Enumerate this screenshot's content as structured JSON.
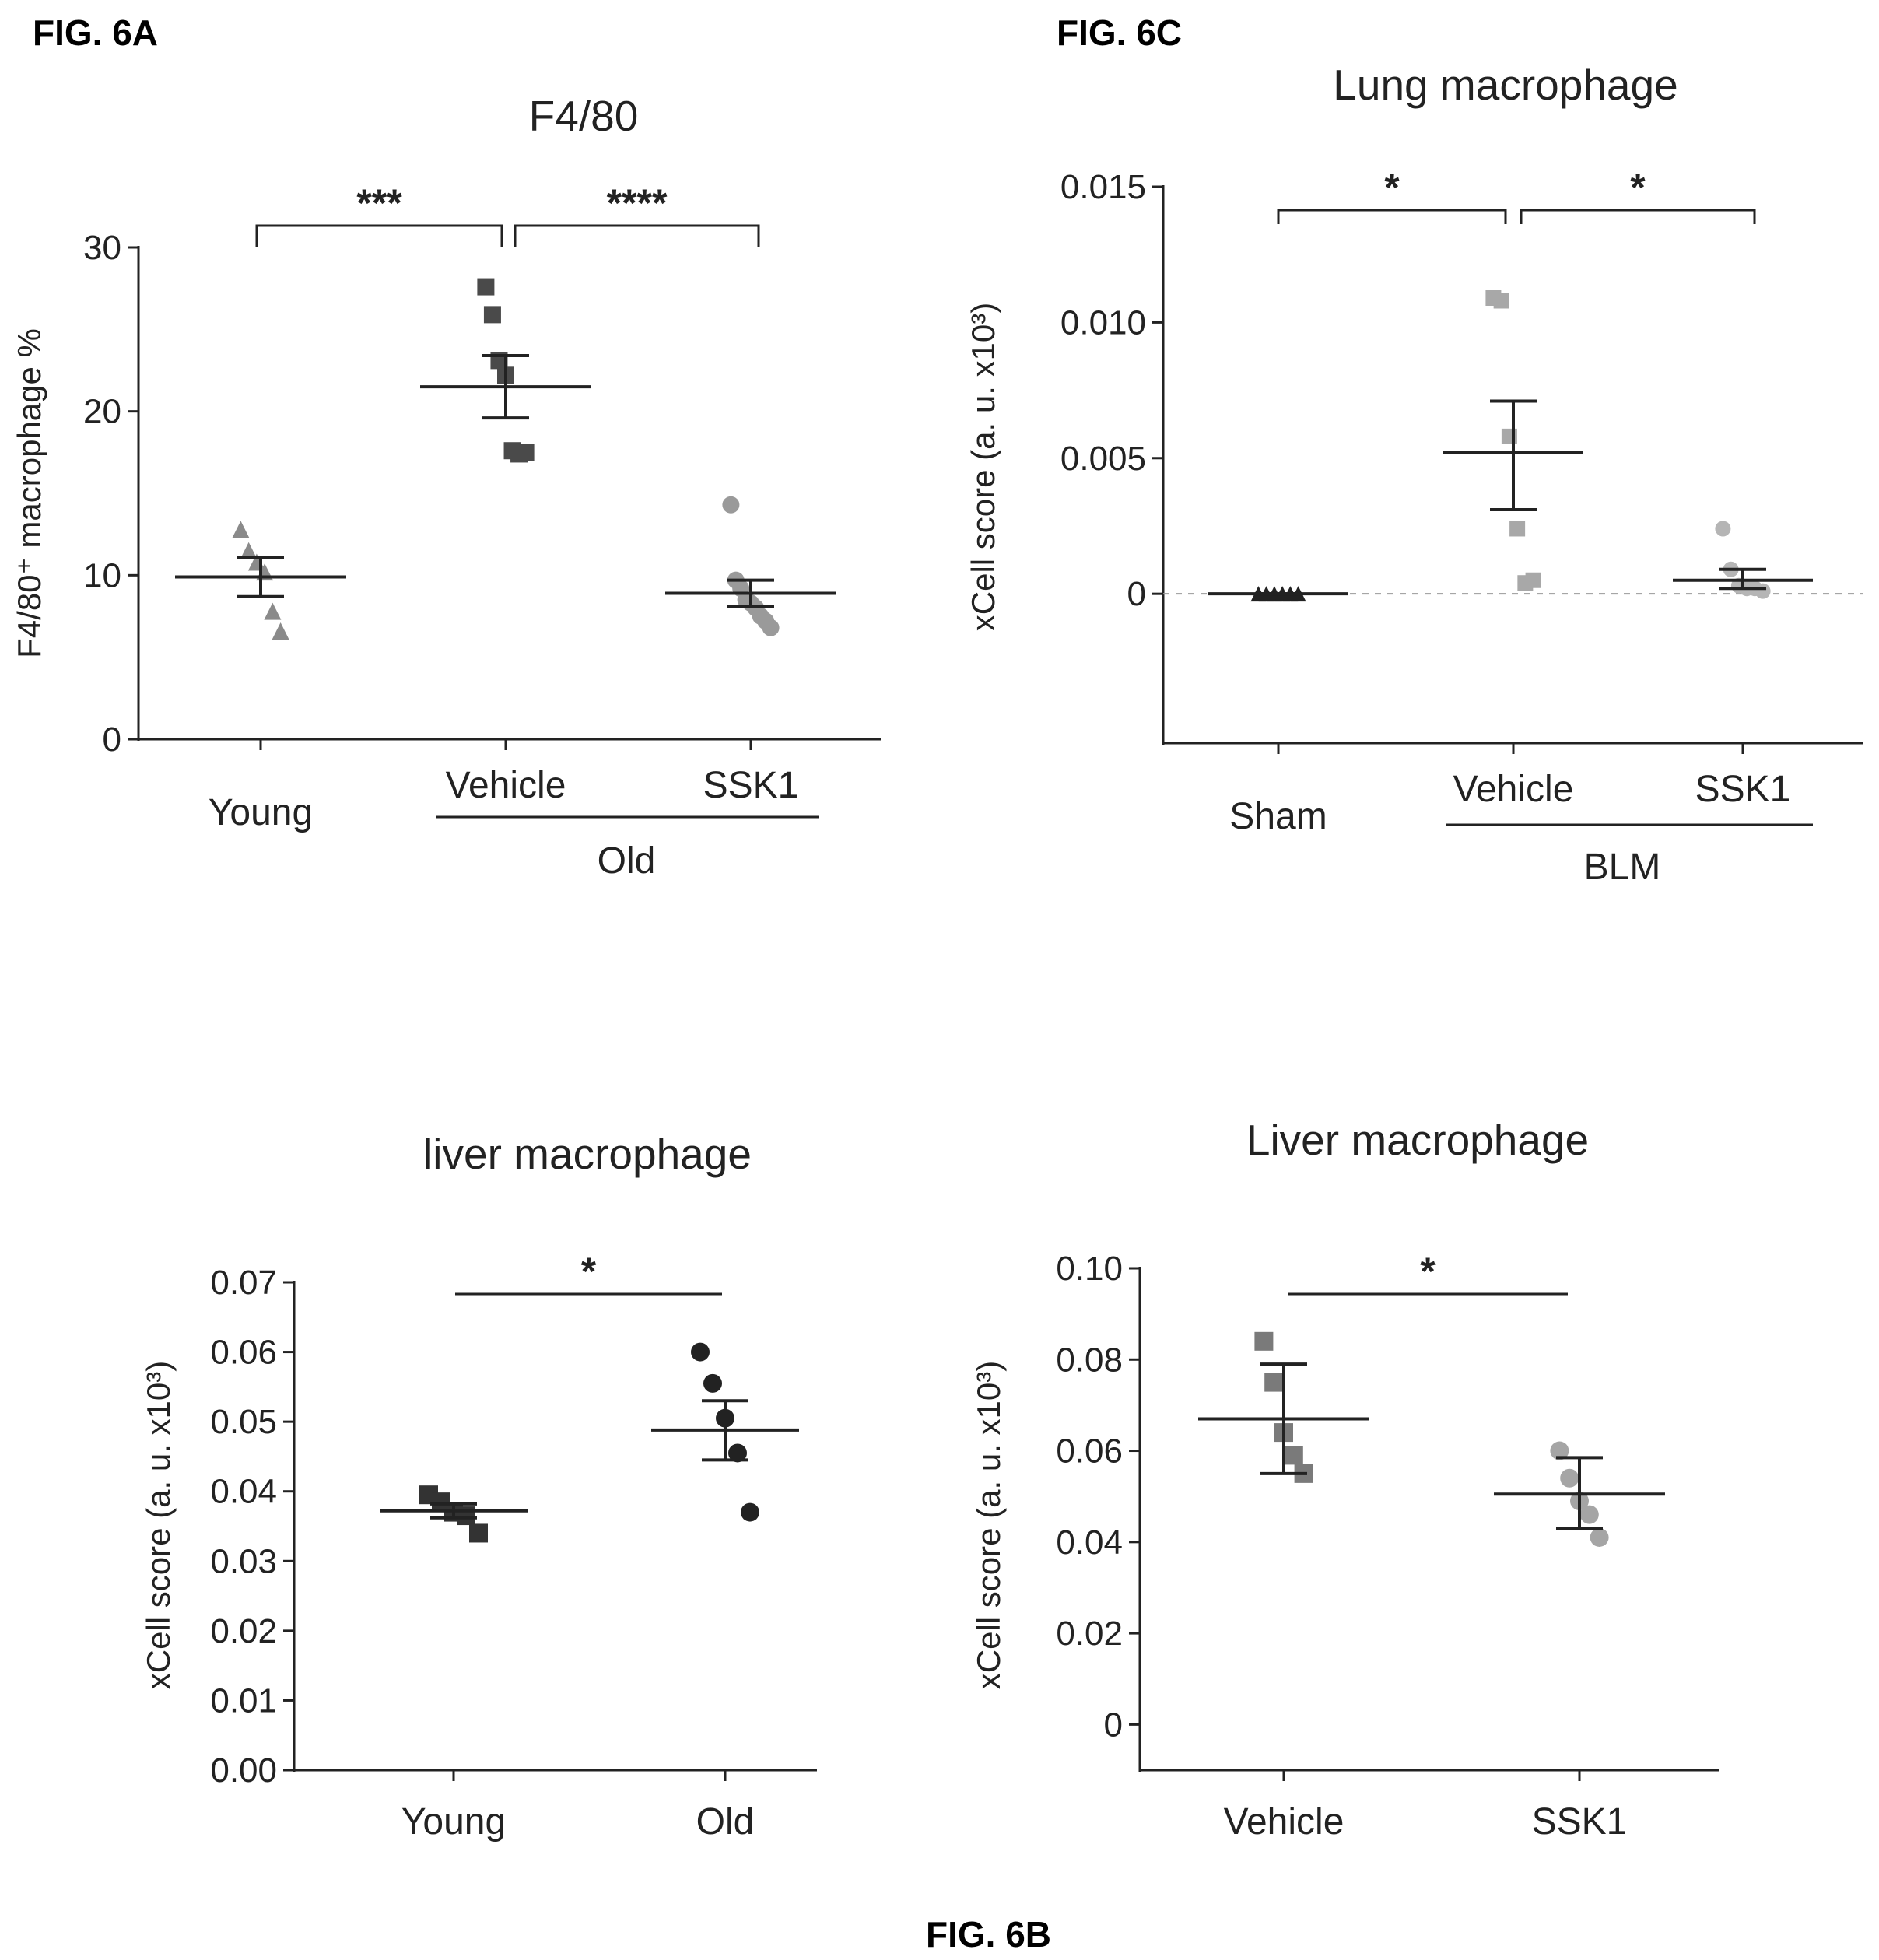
{
  "page": {
    "labels": {
      "a": "FIG. 6A",
      "c": "FIG. 6C",
      "b": "FIG. 6B"
    }
  },
  "chart_data": [
    {
      "id": "6A",
      "type": "scatter",
      "title": "F4/80",
      "ylabel": "F4/80⁺ macrophage %",
      "ylim": [
        0,
        30
      ],
      "yticks": [
        0,
        10,
        20,
        30
      ],
      "ytick_labels": [
        "0",
        "10",
        "20",
        "30"
      ],
      "categories": [
        "Young",
        "Vehicle",
        "SSK1"
      ],
      "group_label": "Old",
      "grid": false,
      "series": [
        {
          "category": "Young",
          "marker": "triangle",
          "color": "#8a8a8a",
          "values": [
            12.8,
            11.5,
            10.8,
            10.2,
            7.8,
            6.6
          ],
          "mean": 9.9,
          "sem_low": 8.7,
          "sem_high": 11.1
        },
        {
          "category": "Vehicle",
          "marker": "square",
          "color": "#4a4a4a",
          "values": [
            27.6,
            25.9,
            23.1,
            22.2,
            17.6,
            17.4,
            17.5
          ],
          "mean": 21.5,
          "sem_low": 19.6,
          "sem_high": 23.4
        },
        {
          "category": "SSK1",
          "marker": "circle",
          "color": "#9a9a9a",
          "values": [
            14.3,
            9.7,
            9.2,
            8.5,
            8.3,
            8.0,
            7.5,
            7.2,
            6.8
          ],
          "mean": 8.9,
          "sem_low": 8.1,
          "sem_high": 9.7
        }
      ],
      "significance": [
        {
          "from": "Young",
          "to": "Vehicle",
          "label": "***"
        },
        {
          "from": "Vehicle",
          "to": "SSK1",
          "label": "****"
        }
      ]
    },
    {
      "id": "6C",
      "type": "scatter",
      "title": "Lung macrophage",
      "ylabel": "xCell score (a. u. x10³)",
      "ylim": [
        -0.0055,
        0.015
      ],
      "yticks": [
        0,
        0.005,
        0.01,
        0.015
      ],
      "ytick_labels": [
        "0",
        "0.005",
        "0.010",
        "0.015"
      ],
      "categories": [
        "Sham",
        "Vehicle",
        "SSK1"
      ],
      "group_label": "BLM",
      "grid": false,
      "baseline": 0,
      "series": [
        {
          "category": "Sham",
          "marker": "triangle",
          "color": "#222222",
          "values": [
            0,
            0,
            0,
            0,
            0,
            0
          ],
          "mean": 0,
          "sem_low": 0,
          "sem_high": 0
        },
        {
          "category": "Vehicle",
          "marker": "square",
          "color": "#a8a8a8",
          "values": [
            0.0109,
            0.0108,
            0.0058,
            0.0024,
            0.0004,
            0.0005
          ],
          "mean": 0.0052,
          "sem_low": 0.0031,
          "sem_high": 0.0071
        },
        {
          "category": "SSK1",
          "marker": "circle",
          "color": "#b5b5b5",
          "values": [
            0.0024,
            0.0009,
            0.0003,
            0.0002,
            0.0002,
            0.0001
          ],
          "mean": 0.0005,
          "sem_low": 0.0002,
          "sem_high": 0.0009
        }
      ],
      "significance": [
        {
          "from": "Sham",
          "to": "Vehicle",
          "label": "*"
        },
        {
          "from": "Vehicle",
          "to": "SSK1",
          "label": "*"
        }
      ]
    },
    {
      "id": "6B-left",
      "type": "scatter",
      "title": "liver macrophage",
      "ylabel": "xCell score (a. u. x10³)",
      "ylim": [
        0,
        0.07
      ],
      "yticks": [
        0,
        0.01,
        0.02,
        0.03,
        0.04,
        0.05,
        0.06,
        0.07
      ],
      "ytick_labels": [
        "0.00",
        "0.01",
        "0.02",
        "0.03",
        "0.04",
        "0.05",
        "0.06",
        "0.07"
      ],
      "categories": [
        "Young",
        "Old"
      ],
      "grid": false,
      "series": [
        {
          "category": "Young",
          "marker": "square",
          "color": "#333333",
          "values": [
            0.0395,
            0.0385,
            0.037,
            0.0365,
            0.034
          ],
          "mean": 0.0372,
          "sem_low": 0.0362,
          "sem_high": 0.0382
        },
        {
          "category": "Old",
          "marker": "circle",
          "color": "#222222",
          "values": [
            0.06,
            0.0555,
            0.0505,
            0.0455,
            0.037
          ],
          "mean": 0.0488,
          "sem_low": 0.0445,
          "sem_high": 0.053
        }
      ],
      "significance": [
        {
          "from": "Young",
          "to": "Old",
          "label": "*"
        }
      ]
    },
    {
      "id": "6B-right",
      "type": "scatter",
      "title": "Liver macrophage",
      "ylabel": "xCell score (a. u. x10³)",
      "ylim": [
        -0.01,
        0.1
      ],
      "yticks": [
        0,
        0.02,
        0.04,
        0.06,
        0.08,
        0.1
      ],
      "ytick_labels": [
        "0",
        "0.02",
        "0.04",
        "0.06",
        "0.08",
        "0.10"
      ],
      "categories": [
        "Vehicle",
        "SSK1"
      ],
      "grid": false,
      "series": [
        {
          "category": "Vehicle",
          "marker": "square",
          "color": "#7a7a7a",
          "values": [
            0.084,
            0.075,
            0.064,
            0.059,
            0.055
          ],
          "mean": 0.067,
          "sem_low": 0.055,
          "sem_high": 0.079
        },
        {
          "category": "SSK1",
          "marker": "circle",
          "color": "#a5a5a5",
          "values": [
            0.06,
            0.054,
            0.049,
            0.046,
            0.041
          ],
          "mean": 0.0505,
          "sem_low": 0.043,
          "sem_high": 0.0585
        }
      ],
      "significance": [
        {
          "from": "Vehicle",
          "to": "SSK1",
          "label": "*"
        }
      ]
    }
  ]
}
